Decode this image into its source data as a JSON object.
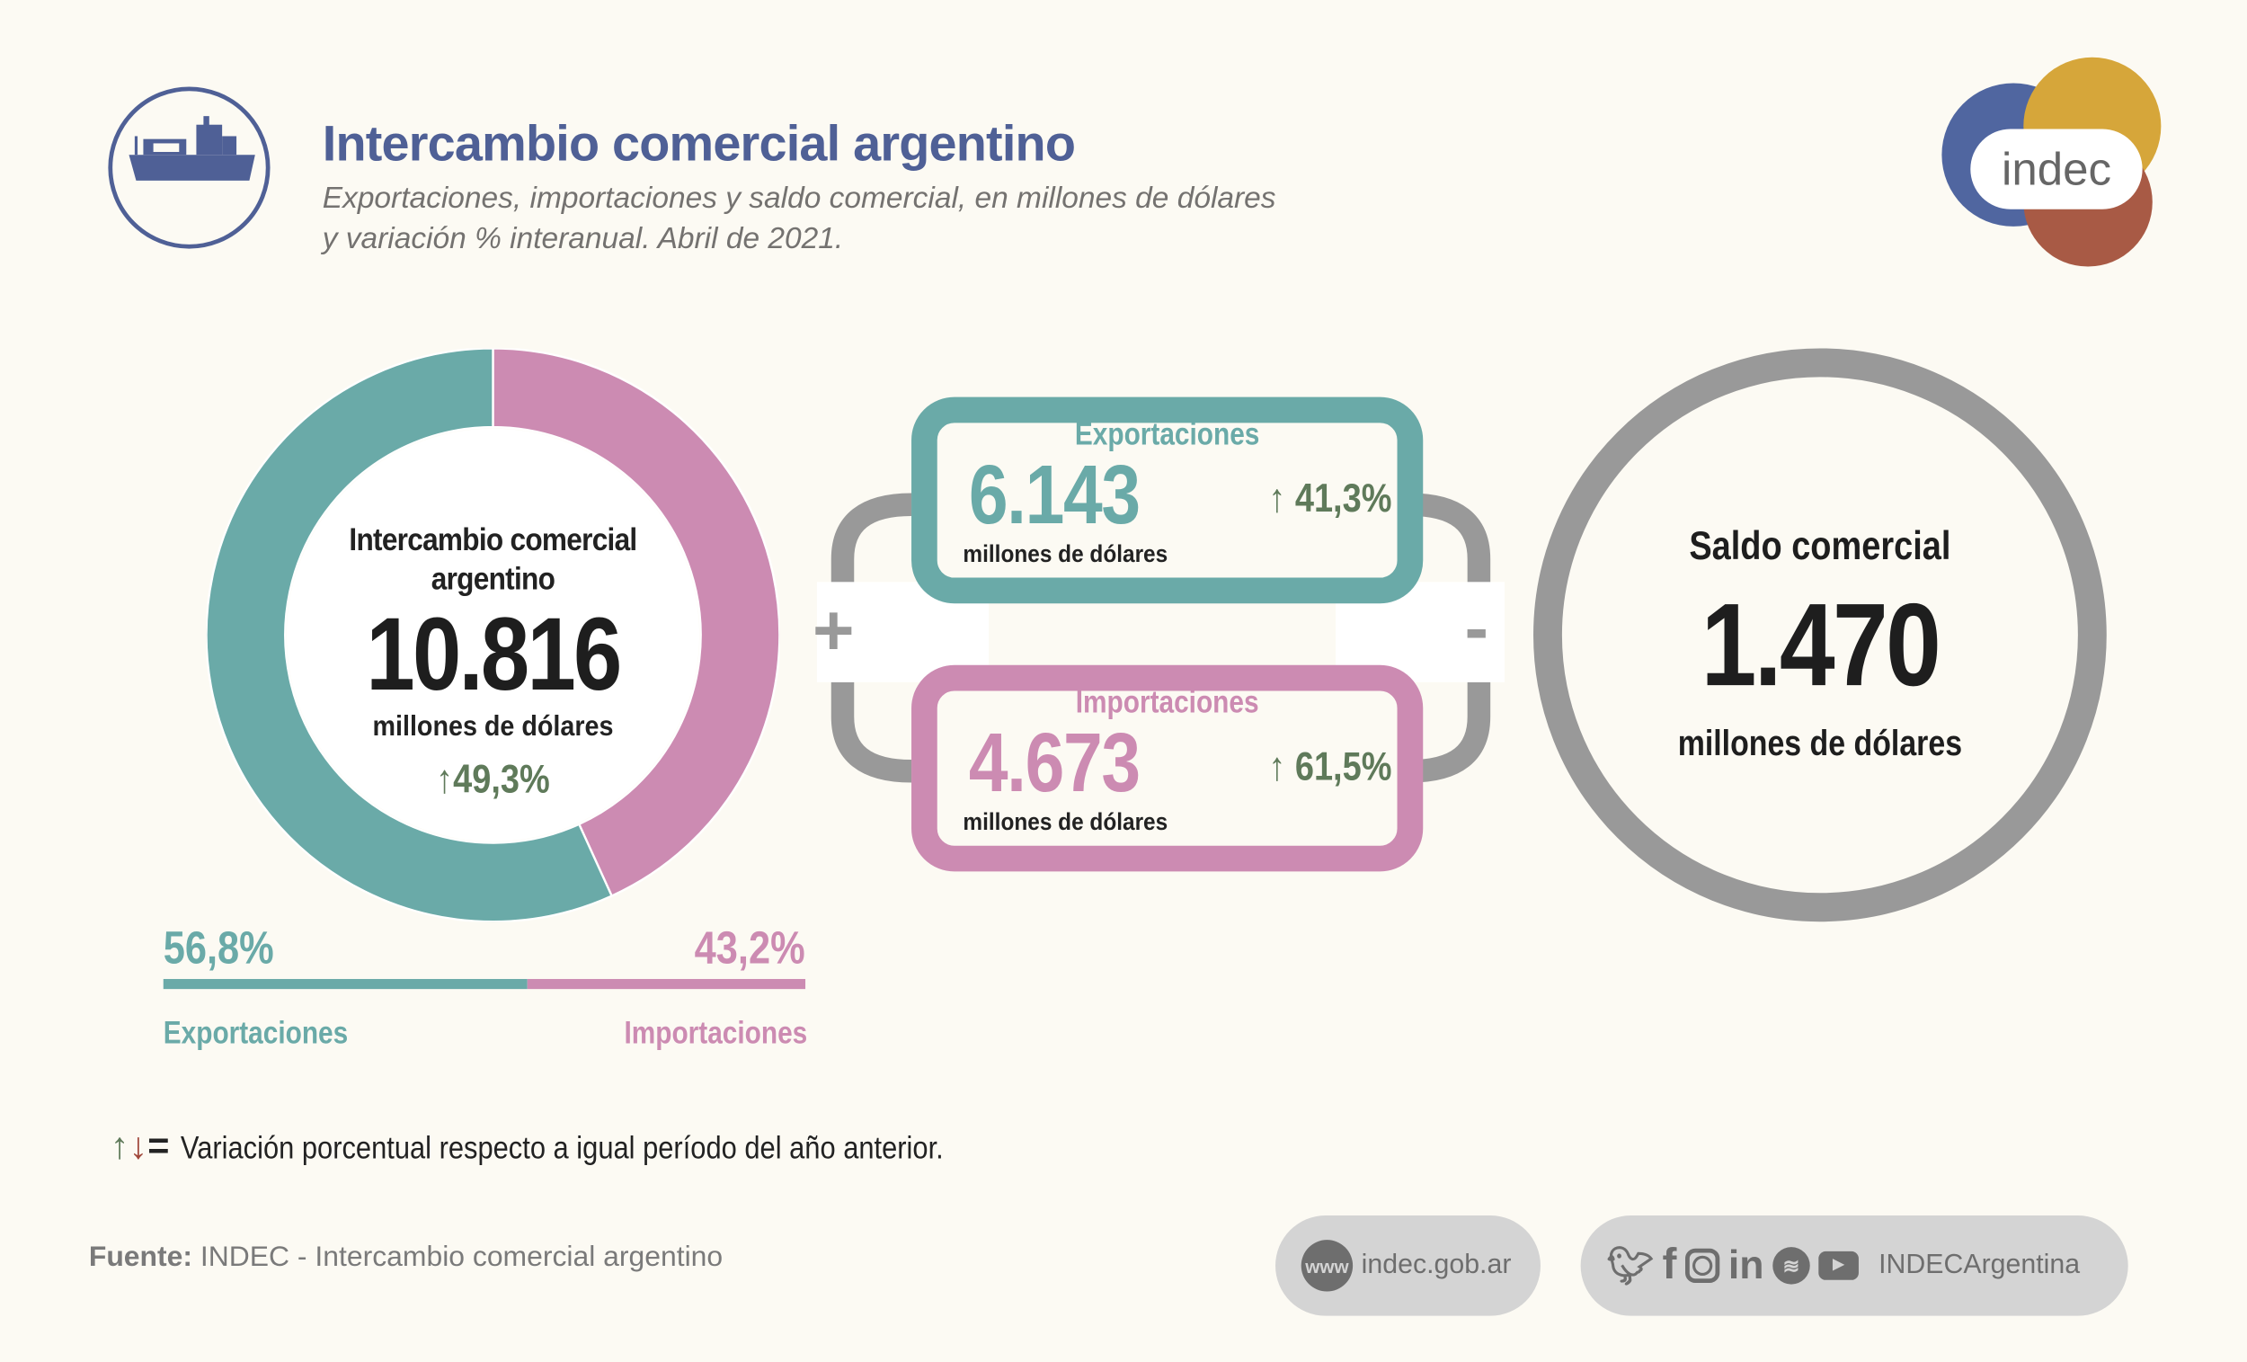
{
  "header": {
    "title": "Intercambio comercial argentino",
    "subtitle_line1": "Exportaciones, importaciones y saldo comercial, en millones de dólares",
    "subtitle_line2": "y variación % interanual. Abril de 2021.",
    "logo_text": "indec"
  },
  "donut": {
    "label_line1": "Intercambio comercial",
    "label_line2": "argentino",
    "value": "10.816",
    "unit": "millones de dólares",
    "variation": "49,3%",
    "variation_arrow": "↑"
  },
  "chart_data": {
    "type": "pie",
    "categories": [
      "Exportaciones",
      "Importaciones"
    ],
    "values": [
      56.8,
      43.2
    ],
    "value_labels": [
      "56,8%",
      "43,2%"
    ],
    "colors": [
      "#6aaaa8",
      "#cc8bb2"
    ]
  },
  "share": {
    "exports_pct": "56,8%",
    "imports_pct": "43,2%",
    "exports_label": "Exportaciones",
    "imports_label": "Importaciones"
  },
  "exports": {
    "label": "Exportaciones",
    "value": "6.143",
    "unit": "millones de dólares",
    "variation": "41,3%",
    "arrow": "↑"
  },
  "imports": {
    "label": "Importaciones",
    "value": "4.673",
    "unit": "millones de dólares",
    "variation": "61,5%",
    "arrow": "↑"
  },
  "operators": {
    "plus": "+",
    "minus": "-"
  },
  "balance": {
    "label": "Saldo comercial",
    "value": "1.470",
    "unit": "millones de dólares"
  },
  "legend": {
    "symbols_up": "↑",
    "symbols_down": "↓",
    "symbols_eq": "=",
    "text": "Variación porcentual respecto a igual período del año anterior."
  },
  "footer": {
    "source_label": "Fuente:",
    "source_text": " INDEC - Intercambio comercial argentino",
    "www_icon": "www",
    "website": "indec.gob.ar",
    "social_handle": "INDECArgentina",
    "social_icons": [
      "twitter-icon",
      "facebook-icon",
      "instagram-icon",
      "linkedin-icon",
      "spotify-icon",
      "youtube-icon"
    ]
  },
  "colors": {
    "teal": "#6aaaa8",
    "pink": "#cc8bb2",
    "blue": "#4f6096",
    "gray": "#999999",
    "green": "#5f7a5a",
    "red": "#a0473a"
  }
}
